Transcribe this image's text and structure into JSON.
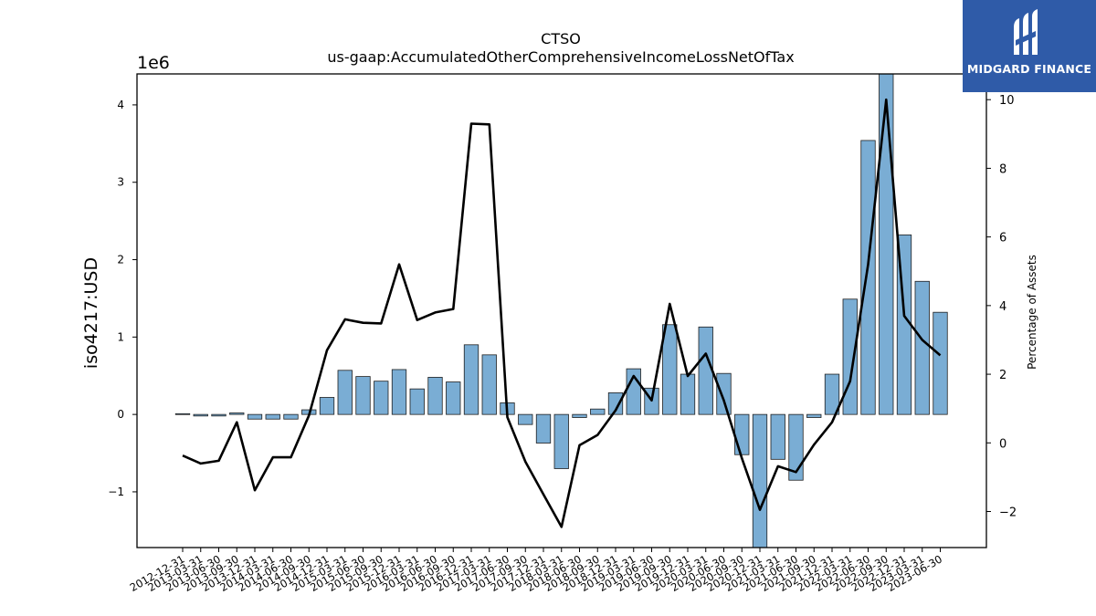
{
  "chart_data": {
    "type": "bar",
    "title": "CTSO",
    "subtitle": "us-gaap:AccumulatedOtherComprehensiveIncomeLossNetOfTax",
    "ylabel": "iso4217:USD",
    "y_scale_label": "1e6",
    "y2label": "Percentage of Assets",
    "ylim": [
      -1.72,
      4.4
    ],
    "y2lim": [
      -3.05,
      10.75
    ],
    "y_ticks": [
      -1,
      0,
      1,
      2,
      3,
      4
    ],
    "y_tick_labels": [
      "−1",
      "0",
      "1",
      "2",
      "3",
      "4"
    ],
    "y2_ticks": [
      -2,
      0,
      2,
      4,
      6,
      8,
      10
    ],
    "y2_tick_labels": [
      "−2",
      "0",
      "2",
      "4",
      "6",
      "8",
      "10"
    ],
    "bar_color": "#7aadd4",
    "line_color": "#000000",
    "categories": [
      "2012-12-31",
      "2013-03-31",
      "2013-06-30",
      "2013-09-30",
      "2013-12-31",
      "2014-03-31",
      "2014-06-30",
      "2014-09-30",
      "2014-12-31",
      "2015-03-31",
      "2015-06-30",
      "2015-09-30",
      "2015-12-31",
      "2016-03-31",
      "2016-06-30",
      "2016-09-30",
      "2016-12-31",
      "2017-03-31",
      "2017-06-30",
      "2017-09-30",
      "2017-12-31",
      "2018-03-31",
      "2018-06-30",
      "2018-09-30",
      "2018-12-31",
      "2019-03-31",
      "2019-06-30",
      "2019-09-30",
      "2019-12-31",
      "2020-03-31",
      "2020-06-30",
      "2020-09-30",
      "2020-12-31",
      "2021-03-31",
      "2021-06-30",
      "2021-09-30",
      "2021-12-31",
      "2022-03-31",
      "2022-06-30",
      "2022-09-30",
      "2022-12-31",
      "2023-03-31",
      "2023-06-30"
    ],
    "series": [
      {
        "kind": "bar",
        "axis": "left",
        "values": [
          0.01,
          -0.02,
          -0.02,
          0.02,
          -0.06,
          -0.06,
          -0.06,
          0.06,
          0.22,
          0.57,
          0.49,
          0.43,
          0.58,
          0.33,
          0.48,
          0.42,
          0.9,
          0.77,
          0.15,
          -0.13,
          -0.37,
          -0.7,
          -0.04,
          0.07,
          0.28,
          0.59,
          0.34,
          1.16,
          0.52,
          1.13,
          0.53,
          -0.52,
          -2.2,
          -0.58,
          -0.85,
          -0.04,
          0.52,
          1.49,
          3.54,
          4.4,
          2.32,
          1.72,
          1.32
        ]
      },
      {
        "kind": "line",
        "axis": "right",
        "values": [
          -0.37,
          -0.6,
          -0.52,
          0.6,
          -1.38,
          -0.42,
          -0.42,
          0.8,
          2.7,
          3.6,
          3.5,
          3.48,
          5.2,
          3.58,
          3.8,
          3.9,
          9.3,
          9.28,
          0.75,
          -0.55,
          -1.5,
          -2.45,
          -0.07,
          0.23,
          0.95,
          1.95,
          1.24,
          4.05,
          1.95,
          2.6,
          1.24,
          -0.45,
          -1.95,
          -0.68,
          -0.85,
          -0.05,
          0.6,
          1.8,
          5.2,
          10,
          3.7,
          3,
          2.55
        ]
      }
    ]
  },
  "logo": {
    "text": "MIDGARD FINANCE",
    "background": "#2f5ba8"
  }
}
